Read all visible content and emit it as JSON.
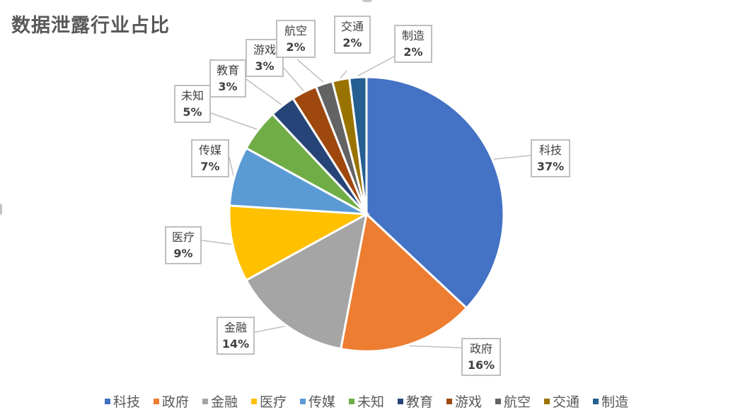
{
  "chart_data": {
    "type": "pie",
    "title": "数据泄露行业占比",
    "categories": [
      "科技",
      "政府",
      "金融",
      "医疗",
      "传媒",
      "未知",
      "教育",
      "游戏",
      "航空",
      "交通",
      "制造"
    ],
    "values": [
      37,
      16,
      14,
      9,
      7,
      5,
      3,
      3,
      2,
      2,
      2
    ],
    "value_labels": [
      "37%",
      "16%",
      "14%",
      "9%",
      "7%",
      "5%",
      "3%",
      "3%",
      "2%",
      "2%",
      "2%"
    ],
    "colors": [
      "#4472C4",
      "#ED7D31",
      "#A5A5A5",
      "#FFC000",
      "#5B9BD5",
      "#70AD47",
      "#264478",
      "#9E480E",
      "#636363",
      "#997300",
      "#255E91"
    ],
    "start_angle_deg": 0,
    "direction": "clockwise",
    "legend_position": "bottom",
    "data_labels": "category and percentage, callout boxes with leader lines"
  },
  "title": "数据泄露行业占比",
  "labels": [
    {
      "name": "科技",
      "pct": "37%"
    },
    {
      "name": "政府",
      "pct": "16%"
    },
    {
      "name": "金融",
      "pct": "14%"
    },
    {
      "name": "医疗",
      "pct": "9%"
    },
    {
      "name": "传媒",
      "pct": "7%"
    },
    {
      "name": "未知",
      "pct": "5%"
    },
    {
      "name": "教育",
      "pct": "3%"
    },
    {
      "name": "游戏",
      "pct": "3%"
    },
    {
      "name": "航空",
      "pct": "2%"
    },
    {
      "name": "交通",
      "pct": "2%"
    },
    {
      "name": "制造",
      "pct": "2%"
    }
  ],
  "legend": [
    "科技",
    "政府",
    "金融",
    "医疗",
    "传媒",
    "未知",
    "教育",
    "游戏",
    "航空",
    "交通",
    "制造"
  ]
}
